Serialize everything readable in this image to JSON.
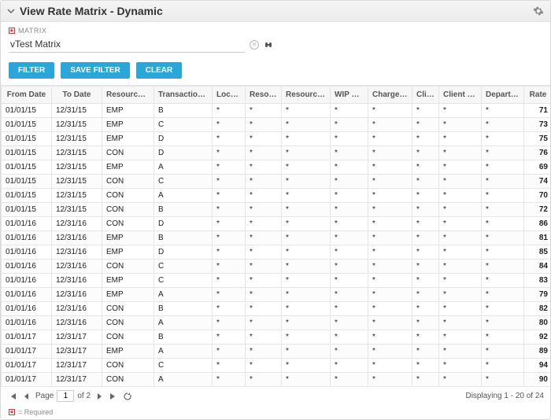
{
  "header": {
    "title": "View Rate Matrix - Dynamic"
  },
  "matrix": {
    "label": "MATRIX",
    "value": "vTest Matrix"
  },
  "buttons": {
    "filter": "FILTER",
    "save_filter": "SAVE FILTER",
    "clear": "CLEAR"
  },
  "grid": {
    "columns": [
      "From Date",
      "To Date",
      "Resource Class",
      "Transaction Class",
      "Location",
      "Resource",
      "Resource Role",
      "WIP Class",
      "Charge Code",
      "Client",
      "Client Class",
      "Department",
      "Rate"
    ],
    "rows": [
      [
        "01/01/15",
        "12/31/15",
        "EMP",
        "B",
        "*",
        "*",
        "*",
        "*",
        "*",
        "*",
        "*",
        "*",
        "71"
      ],
      [
        "01/01/15",
        "12/31/15",
        "EMP",
        "C",
        "*",
        "*",
        "*",
        "*",
        "*",
        "*",
        "*",
        "*",
        "73"
      ],
      [
        "01/01/15",
        "12/31/15",
        "EMP",
        "D",
        "*",
        "*",
        "*",
        "*",
        "*",
        "*",
        "*",
        "*",
        "75"
      ],
      [
        "01/01/15",
        "12/31/15",
        "CON",
        "D",
        "*",
        "*",
        "*",
        "*",
        "*",
        "*",
        "*",
        "*",
        "76"
      ],
      [
        "01/01/15",
        "12/31/15",
        "EMP",
        "A",
        "*",
        "*",
        "*",
        "*",
        "*",
        "*",
        "*",
        "*",
        "69"
      ],
      [
        "01/01/15",
        "12/31/15",
        "CON",
        "C",
        "*",
        "*",
        "*",
        "*",
        "*",
        "*",
        "*",
        "*",
        "74"
      ],
      [
        "01/01/15",
        "12/31/15",
        "CON",
        "A",
        "*",
        "*",
        "*",
        "*",
        "*",
        "*",
        "*",
        "*",
        "70"
      ],
      [
        "01/01/15",
        "12/31/15",
        "CON",
        "B",
        "*",
        "*",
        "*",
        "*",
        "*",
        "*",
        "*",
        "*",
        "72"
      ],
      [
        "01/01/16",
        "12/31/16",
        "CON",
        "D",
        "*",
        "*",
        "*",
        "*",
        "*",
        "*",
        "*",
        "*",
        "86"
      ],
      [
        "01/01/16",
        "12/31/16",
        "EMP",
        "B",
        "*",
        "*",
        "*",
        "*",
        "*",
        "*",
        "*",
        "*",
        "81"
      ],
      [
        "01/01/16",
        "12/31/16",
        "EMP",
        "D",
        "*",
        "*",
        "*",
        "*",
        "*",
        "*",
        "*",
        "*",
        "85"
      ],
      [
        "01/01/16",
        "12/31/16",
        "CON",
        "C",
        "*",
        "*",
        "*",
        "*",
        "*",
        "*",
        "*",
        "*",
        "84"
      ],
      [
        "01/01/16",
        "12/31/16",
        "EMP",
        "C",
        "*",
        "*",
        "*",
        "*",
        "*",
        "*",
        "*",
        "*",
        "83"
      ],
      [
        "01/01/16",
        "12/31/16",
        "EMP",
        "A",
        "*",
        "*",
        "*",
        "*",
        "*",
        "*",
        "*",
        "*",
        "79"
      ],
      [
        "01/01/16",
        "12/31/16",
        "CON",
        "B",
        "*",
        "*",
        "*",
        "*",
        "*",
        "*",
        "*",
        "*",
        "82"
      ],
      [
        "01/01/16",
        "12/31/16",
        "CON",
        "A",
        "*",
        "*",
        "*",
        "*",
        "*",
        "*",
        "*",
        "*",
        "80"
      ],
      [
        "01/01/17",
        "12/31/17",
        "CON",
        "B",
        "*",
        "*",
        "*",
        "*",
        "*",
        "*",
        "*",
        "*",
        "92"
      ],
      [
        "01/01/17",
        "12/31/17",
        "EMP",
        "A",
        "*",
        "*",
        "*",
        "*",
        "*",
        "*",
        "*",
        "*",
        "89"
      ],
      [
        "01/01/17",
        "12/31/17",
        "CON",
        "C",
        "*",
        "*",
        "*",
        "*",
        "*",
        "*",
        "*",
        "*",
        "94"
      ],
      [
        "01/01/17",
        "12/31/17",
        "CON",
        "A",
        "*",
        "*",
        "*",
        "*",
        "*",
        "*",
        "*",
        "*",
        "90"
      ]
    ]
  },
  "pager": {
    "page_label": "Page",
    "current_page": "1",
    "total_pages_label": "of 2",
    "display_text": "Displaying 1 - 20 of 24"
  },
  "footer": {
    "required_label": "= Required"
  },
  "colors": {
    "accent": "#2aa7d8",
    "border": "#e5e5e5",
    "header_bg": "#f7f7f7"
  }
}
